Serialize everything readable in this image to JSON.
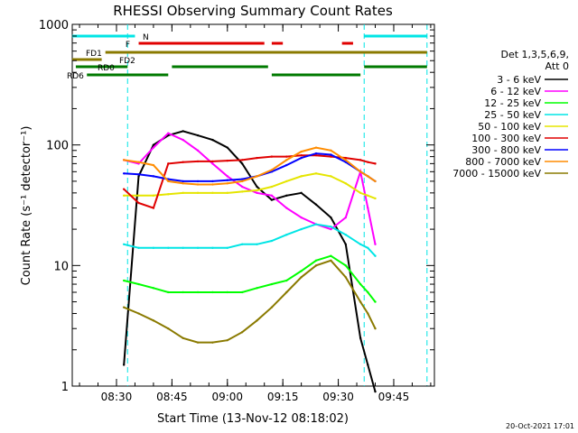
{
  "chart_data": {
    "type": "line",
    "title": "RHESSI Observing Summary Count Rates",
    "xlabel": "Start Time (13-Nov-12 08:18:02)",
    "ylabel": "Count Rate (s⁻¹ detector⁻¹)",
    "y_scale": "log",
    "ylim": [
      1,
      1000
    ],
    "xlim": [
      "08:18",
      "09:56"
    ],
    "x_ticks": [
      "08:30",
      "08:45",
      "09:00",
      "09:15",
      "09:30",
      "09:45"
    ],
    "y_ticks": [
      "1",
      "10",
      "100",
      "1000"
    ],
    "legend_title": [
      "Det 1,3,5,6,9,",
      "Att 0"
    ],
    "legend_position": "right",
    "footer_date": "20-Oct-2021 17:01",
    "bars": [
      {
        "label": "N",
        "color": "#00e5e5",
        "segments": [
          [
            "08:18",
            "08:35"
          ],
          [
            "09:37",
            "09:54"
          ]
        ]
      },
      {
        "label": "F",
        "color": "#e00000",
        "segments": [
          [
            "08:36",
            "09:10"
          ],
          [
            "09:12",
            "09:15"
          ],
          [
            "09:31",
            "09:34"
          ]
        ]
      },
      {
        "label": "FD1",
        "color": "#8a7a00",
        "segments": [
          [
            "08:27",
            "09:54"
          ]
        ]
      },
      {
        "label": "FD2",
        "color": "#8a7a00",
        "segments": [
          [
            "08:18",
            "08:26"
          ]
        ]
      },
      {
        "label": "RD0",
        "color": "#007a00",
        "segments": [
          [
            "08:19",
            "08:33"
          ],
          [
            "08:45",
            "09:11"
          ],
          [
            "09:37",
            "09:54"
          ]
        ]
      },
      {
        "label": "RD6",
        "color": "#007a00",
        "segments": [
          [
            "08:22",
            "08:44"
          ],
          [
            "09:12",
            "09:36"
          ]
        ]
      }
    ],
    "series": [
      {
        "name": "3 - 6 keV",
        "color": "#000000",
        "x": [
          "08:32",
          "08:36",
          "08:40",
          "08:44",
          "08:48",
          "08:52",
          "08:56",
          "09:00",
          "09:04",
          "09:08",
          "09:12",
          "09:16",
          "09:20",
          "09:24",
          "09:28",
          "09:32",
          "09:36",
          "09:38",
          "09:40"
        ],
        "y": [
          1.5,
          55,
          100,
          120,
          130,
          120,
          110,
          95,
          70,
          45,
          35,
          38,
          40,
          32,
          25,
          15,
          2.5,
          1.5,
          0.9
        ]
      },
      {
        "name": "6 - 12 keV",
        "color": "#ff00ff",
        "x": [
          "08:32",
          "08:36",
          "08:40",
          "08:44",
          "08:48",
          "08:52",
          "08:56",
          "09:00",
          "09:04",
          "09:08",
          "09:12",
          "09:16",
          "09:20",
          "09:24",
          "09:28",
          "09:32",
          "09:36",
          "09:38",
          "09:40"
        ],
        "y": [
          75,
          70,
          95,
          125,
          110,
          90,
          70,
          55,
          45,
          40,
          38,
          30,
          25,
          22,
          20,
          25,
          60,
          30,
          15
        ]
      },
      {
        "name": "12 - 25 keV",
        "color": "#00ff00",
        "x": [
          "08:32",
          "08:36",
          "08:40",
          "08:44",
          "08:48",
          "08:52",
          "08:56",
          "09:00",
          "09:04",
          "09:08",
          "09:12",
          "09:16",
          "09:20",
          "09:24",
          "09:28",
          "09:32",
          "09:36",
          "09:38",
          "09:40"
        ],
        "y": [
          7.5,
          7,
          6.5,
          6,
          6,
          6,
          6,
          6,
          6,
          6.5,
          7,
          7.5,
          9,
          11,
          12,
          10,
          7,
          6,
          5
        ]
      },
      {
        "name": "25 - 50 keV",
        "color": "#00e5e5",
        "x": [
          "08:32",
          "08:36",
          "08:40",
          "08:44",
          "08:48",
          "08:52",
          "08:56",
          "09:00",
          "09:04",
          "09:08",
          "09:12",
          "09:16",
          "09:20",
          "09:24",
          "09:28",
          "09:32",
          "09:36",
          "09:38",
          "09:40"
        ],
        "y": [
          15,
          14,
          14,
          14,
          14,
          14,
          14,
          14,
          15,
          15,
          16,
          18,
          20,
          22,
          21,
          18,
          15,
          14,
          12
        ]
      },
      {
        "name": "50 - 100 keV",
        "color": "#e5e500",
        "x": [
          "08:32",
          "08:36",
          "08:40",
          "08:44",
          "08:48",
          "08:52",
          "08:56",
          "09:00",
          "09:04",
          "09:08",
          "09:12",
          "09:16",
          "09:20",
          "09:24",
          "09:28",
          "09:32",
          "09:36",
          "09:38",
          "09:40"
        ],
        "y": [
          38,
          38,
          38,
          39,
          40,
          40,
          40,
          40,
          41,
          42,
          45,
          50,
          55,
          58,
          55,
          48,
          40,
          38,
          36
        ]
      },
      {
        "name": "100 - 300 keV",
        "color": "#e00000",
        "x": [
          "08:32",
          "08:36",
          "08:40",
          "08:44",
          "08:48",
          "08:52",
          "08:56",
          "09:00",
          "09:04",
          "09:08",
          "09:12",
          "09:16",
          "09:20",
          "09:24",
          "09:28",
          "09:32",
          "09:36",
          "09:38",
          "09:40"
        ],
        "y": [
          43,
          33,
          30,
          70,
          72,
          73,
          73,
          74,
          75,
          78,
          80,
          80,
          82,
          82,
          80,
          78,
          75,
          72,
          70
        ]
      },
      {
        "name": "300 - 800 keV",
        "color": "#0000ff",
        "x": [
          "08:32",
          "08:36",
          "08:40",
          "08:44",
          "08:48",
          "08:52",
          "08:56",
          "09:00",
          "09:04",
          "09:08",
          "09:12",
          "09:16",
          "09:20",
          "09:24",
          "09:28",
          "09:32",
          "09:36",
          "09:38",
          "09:40"
        ],
        "y": [
          58,
          57,
          55,
          52,
          50,
          50,
          50,
          51,
          52,
          55,
          60,
          68,
          78,
          85,
          83,
          72,
          60,
          55,
          50
        ]
      },
      {
        "name": "800 - 7000 keV",
        "color": "#ff8c00",
        "x": [
          "08:32",
          "08:36",
          "08:40",
          "08:44",
          "08:48",
          "08:52",
          "08:56",
          "09:00",
          "09:04",
          "09:08",
          "09:12",
          "09:16",
          "09:20",
          "09:24",
          "09:28",
          "09:32",
          "09:36",
          "09:38",
          "09:40"
        ],
        "y": [
          75,
          72,
          68,
          50,
          48,
          47,
          47,
          48,
          50,
          55,
          62,
          75,
          88,
          95,
          90,
          75,
          60,
          55,
          50
        ]
      },
      {
        "name": "7000 - 15000 keV",
        "color": "#8a7a00",
        "x": [
          "08:32",
          "08:36",
          "08:40",
          "08:44",
          "08:48",
          "08:52",
          "08:56",
          "09:00",
          "09:04",
          "09:08",
          "09:12",
          "09:16",
          "09:20",
          "09:24",
          "09:28",
          "09:32",
          "09:36",
          "09:38",
          "09:40"
        ],
        "y": [
          4.5,
          4,
          3.5,
          3,
          2.5,
          2.3,
          2.3,
          2.4,
          2.8,
          3.5,
          4.5,
          6,
          8,
          10,
          11,
          8,
          5,
          4,
          3
        ]
      }
    ],
    "vertical_lines": [
      {
        "time": "08:33",
        "color": "#00e5e5",
        "style": "dashed"
      },
      {
        "time": "09:37",
        "color": "#00e5e5",
        "style": "dashed"
      },
      {
        "time": "09:54",
        "color": "#00e5e5",
        "style": "dashed"
      }
    ]
  }
}
